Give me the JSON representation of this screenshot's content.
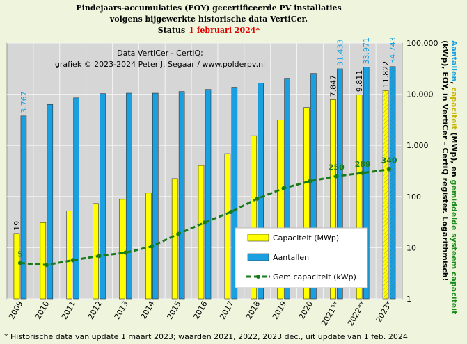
{
  "chart_data": {
    "type": "bar-line",
    "title_lines": [
      "Eindejaars-accumulaties (EOY) gecertificeerde PV installaties",
      "volgens bijgewerkte historische data VertiCer."
    ],
    "status_prefix": "Status",
    "status_date": "1 februari 2024*",
    "annotation_lines": [
      "Data VertiCer - CertiQ;",
      "grafiek © 2023-2024 Peter J. Segaar / www.polderpv.nl"
    ],
    "footnote": "* Historische data van update 1 maart 2023; waarden 2021, 2022, 2023 dec., uit update van 1 feb. 2024",
    "ylabel_lines": [
      [
        {
          "text": "Aantallen",
          "color": "#1aa0e0"
        },
        {
          "text": ", ",
          "color": "#000000"
        },
        {
          "text": "capaciteit",
          "color": "#c8b400"
        },
        {
          "text": " (MWp), en ",
          "color": "#000000"
        },
        {
          "text": "gemiddelde systeem capaciteit",
          "color": "#1a8a1a"
        }
      ],
      [
        {
          "text": "(kWp), EOY, in VertiCer - CertiQ register. Logarithmisch!",
          "color": "#000000"
        }
      ]
    ],
    "categories": [
      "2009",
      "2010",
      "2011",
      "2012",
      "2013",
      "2014",
      "2015",
      "2016",
      "2017",
      "2018",
      "2019",
      "2020",
      "2021**",
      "2022**",
      "2023*"
    ],
    "series": [
      {
        "name": "Capaciteit (MWp)",
        "color": "#ffff00",
        "kind": "bar",
        "values": [
          19,
          31,
          52,
          73,
          88,
          117,
          225,
          405,
          690,
          1550,
          3170,
          5500,
          7847,
          9811,
          11822
        ],
        "value_labels": [
          "19",
          null,
          null,
          null,
          null,
          null,
          null,
          null,
          null,
          null,
          null,
          null,
          "7.847",
          "9.811",
          "11.822"
        ]
      },
      {
        "name": "Aantallen",
        "color": "#1aa0e0",
        "kind": "bar",
        "values": [
          3767,
          6300,
          8500,
          10300,
          10500,
          10500,
          11300,
          12400,
          13700,
          16500,
          20500,
          25500,
          31433,
          33971,
          34743
        ],
        "value_labels": [
          "3.767",
          null,
          null,
          null,
          null,
          null,
          null,
          null,
          null,
          null,
          null,
          null,
          "31.433",
          "33.971",
          "34.743"
        ]
      },
      {
        "name": "Gem capaciteit (kWp)",
        "color": "#1a7a1a",
        "kind": "line",
        "values": [
          5,
          4.6,
          5.7,
          6.9,
          8,
          10.6,
          18.6,
          31,
          50,
          91,
          145,
          200,
          250,
          289,
          340
        ],
        "value_labels": [
          "5",
          null,
          null,
          null,
          null,
          null,
          null,
          null,
          null,
          null,
          null,
          null,
          "250",
          "289",
          "340"
        ]
      }
    ],
    "ylim": [
      1,
      100000
    ],
    "log_scale": true,
    "yticks": [
      1,
      10,
      100,
      {
        "value": 1000,
        "label": "1.000"
      },
      {
        "value": 10000,
        "label": "10.000"
      },
      {
        "value": 100000,
        "label": "100.000"
      }
    ],
    "grid": true,
    "legend": "lower right"
  }
}
